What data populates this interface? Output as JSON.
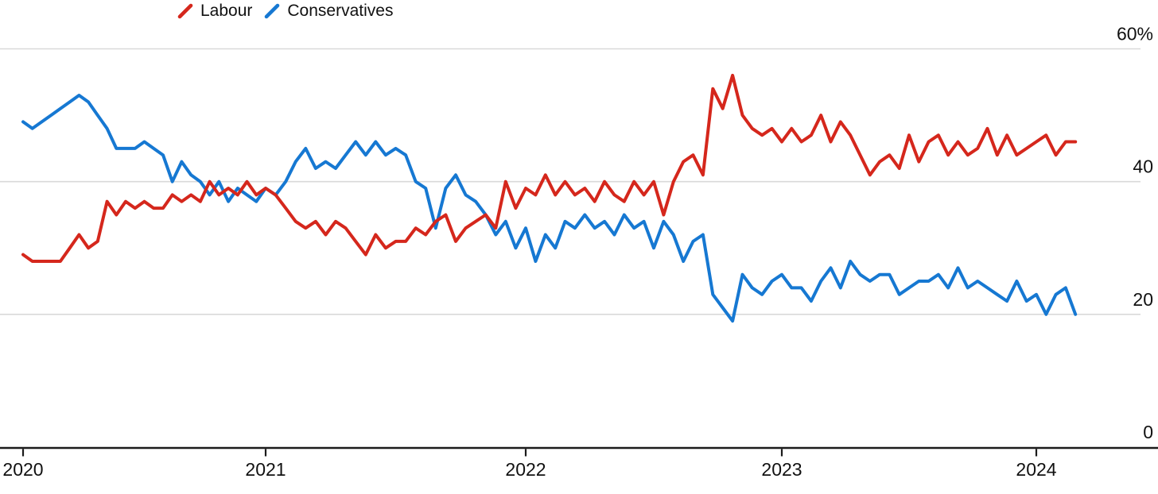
{
  "chart_data": {
    "type": "line",
    "title": "",
    "xlabel": "",
    "ylabel": "",
    "unit": "%",
    "x_start": 2020,
    "x_step": 0.0384615,
    "xlim": [
      2020,
      2024.5
    ],
    "ylim": [
      0,
      60
    ],
    "grid": "horizontal",
    "legend_position": "top",
    "x_ticks": [
      {
        "value": 2020,
        "label": "2020"
      },
      {
        "value": 2021,
        "label": "2021"
      },
      {
        "value": 2022,
        "label": "2022"
      },
      {
        "value": 2023,
        "label": "2023"
      },
      {
        "value": 2024,
        "label": "2024"
      }
    ],
    "y_ticks": [
      {
        "value": 60,
        "label": "60%"
      },
      {
        "value": 40,
        "label": "40"
      },
      {
        "value": 20,
        "label": "20"
      },
      {
        "value": 0,
        "label": "0"
      }
    ],
    "colors": {
      "background": "#ffffff",
      "grid": "#d9d9d9",
      "axis": "#1b1b1b",
      "text": "#111111"
    },
    "series": [
      {
        "name": "Labour",
        "color": "#d5271c",
        "values": [
          29,
          28,
          28,
          28,
          28,
          30,
          32,
          30,
          31,
          37,
          35,
          37,
          36,
          37,
          36,
          36,
          38,
          37,
          38,
          37,
          40,
          38,
          39,
          38,
          40,
          38,
          39,
          38,
          36,
          34,
          33,
          34,
          32,
          34,
          33,
          31,
          29,
          32,
          30,
          31,
          31,
          33,
          32,
          34,
          35,
          31,
          33,
          34,
          35,
          33,
          40,
          36,
          39,
          38,
          41,
          38,
          40,
          38,
          39,
          37,
          40,
          38,
          37,
          40,
          38,
          40,
          35,
          40,
          43,
          44,
          41,
          54,
          51,
          56,
          50,
          48,
          47,
          48,
          46,
          48,
          46,
          47,
          50,
          46,
          49,
          47,
          44,
          41,
          43,
          44,
          42,
          47,
          43,
          46,
          47,
          44,
          46,
          44,
          45,
          48,
          44,
          47,
          44,
          45,
          46,
          47,
          44,
          46,
          46
        ]
      },
      {
        "name": "Conservatives",
        "color": "#1678d2",
        "values": [
          49,
          48,
          49,
          50,
          51,
          52,
          53,
          52,
          50,
          48,
          45,
          45,
          45,
          46,
          45,
          44,
          40,
          43,
          41,
          40,
          38,
          40,
          37,
          39,
          38,
          37,
          39,
          38,
          40,
          43,
          45,
          42,
          43,
          42,
          44,
          46,
          44,
          46,
          44,
          45,
          44,
          40,
          39,
          33,
          39,
          41,
          38,
          37,
          35,
          32,
          34,
          30,
          33,
          28,
          32,
          30,
          34,
          33,
          35,
          33,
          34,
          32,
          35,
          33,
          34,
          30,
          34,
          32,
          28,
          31,
          32,
          23,
          21,
          19,
          26,
          24,
          23,
          25,
          26,
          24,
          24,
          22,
          25,
          27,
          24,
          28,
          26,
          25,
          26,
          26,
          23,
          24,
          25,
          25,
          26,
          24,
          27,
          24,
          25,
          24,
          23,
          22,
          25,
          22,
          23,
          20,
          23,
          24,
          20
        ]
      }
    ]
  }
}
